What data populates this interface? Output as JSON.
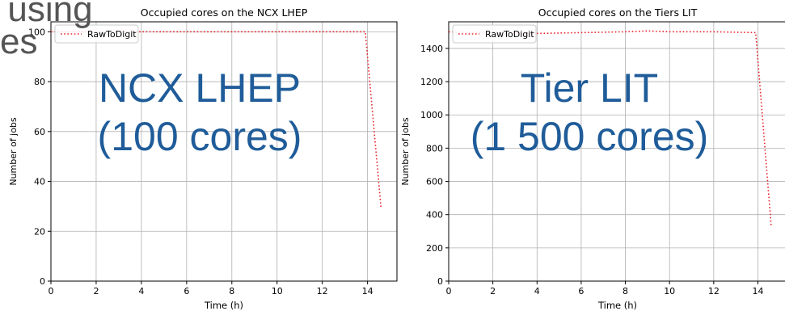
{
  "slide_fragment": {
    "line1": "using",
    "line2": "es"
  },
  "chart_data": [
    {
      "type": "line",
      "title": "Occupied cores on the NCX LHEP",
      "xlabel": "Time (h)",
      "ylabel": "Number of jobs",
      "xlim": [
        0,
        15.3
      ],
      "ylim": [
        0,
        104
      ],
      "xticks": [
        0,
        2,
        4,
        6,
        8,
        10,
        12,
        14
      ],
      "yticks": [
        0,
        20,
        40,
        60,
        80,
        100
      ],
      "grid": true,
      "legend_position": "top-left",
      "series": [
        {
          "name": "RawToDigit",
          "color": "#e8222b",
          "style": "dotted",
          "x": [
            0,
            2,
            4,
            6,
            8,
            10,
            12,
            13.9,
            14.6
          ],
          "y": [
            100,
            100,
            100,
            100,
            100,
            100,
            100,
            100,
            29
          ]
        }
      ],
      "annotation": {
        "line1": "NCX LHEP",
        "line2": "(100 cores)",
        "color": "#1f5c99"
      }
    },
    {
      "type": "line",
      "title": "Occupied cores on the Tiers LIT",
      "xlabel": "Time (h)",
      "ylabel": "Number of jobs",
      "xlim": [
        0,
        15.3
      ],
      "ylim": [
        0,
        1560
      ],
      "xticks": [
        0,
        2,
        4,
        6,
        8,
        10,
        12,
        14
      ],
      "yticks": [
        0,
        200,
        400,
        600,
        800,
        1000,
        1200,
        1400
      ],
      "grid": true,
      "legend_position": "top-left",
      "series": [
        {
          "name": "RawToDigit",
          "color": "#e8222b",
          "style": "dotted",
          "x": [
            0,
            1,
            2,
            4,
            6,
            8,
            9,
            10,
            12,
            13.9,
            14.6
          ],
          "y": [
            1500,
            1495,
            1500,
            1490,
            1495,
            1500,
            1505,
            1500,
            1500,
            1495,
            335
          ]
        }
      ],
      "annotation": {
        "line1": "Tier LIT",
        "line2": "(1 500 cores)",
        "color": "#1f5c99"
      }
    }
  ]
}
